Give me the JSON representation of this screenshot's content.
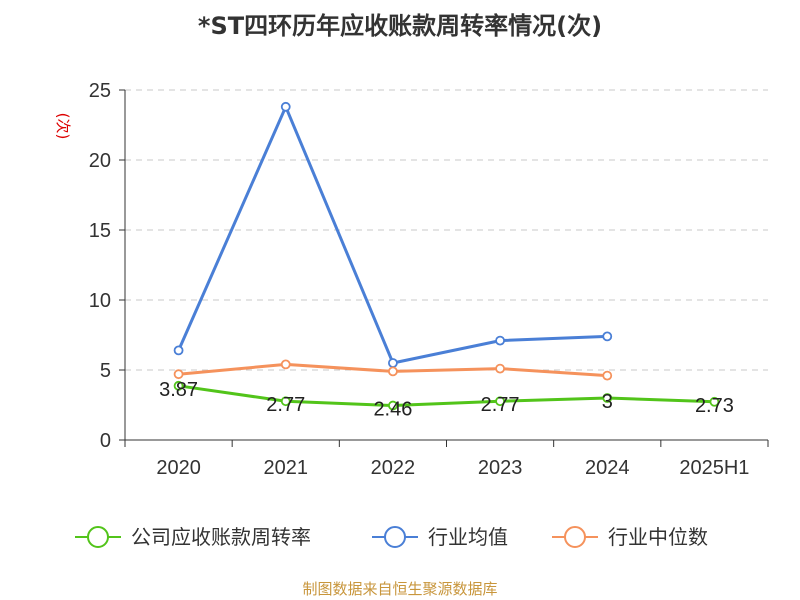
{
  "title": "*ST四环历年应收账款周转率情况(次)",
  "source": "制图数据来自恒生聚源数据库",
  "source_color": "#c8963c",
  "chart_data": {
    "type": "line",
    "title": "*ST四环历年应收账款周转率情况(次)",
    "categories": [
      "2020",
      "2021",
      "2022",
      "2023",
      "2024",
      "2025H1"
    ],
    "ylabel": "(次)",
    "ylim": [
      0,
      25
    ],
    "yticks": [
      0,
      5,
      10,
      15,
      20,
      25
    ],
    "grid": true,
    "legend_position": "bottom",
    "series": [
      {
        "name": "公司应收账款周转率",
        "color": "#52c41a",
        "values": [
          3.87,
          2.77,
          2.46,
          2.77,
          3,
          2.73
        ],
        "labels": [
          "3.87",
          "2.77",
          "2.46",
          "2.77",
          "3",
          "2.73"
        ]
      },
      {
        "name": "行业均值",
        "color": "#4a7fd6",
        "values": [
          6.4,
          23.8,
          5.5,
          7.1,
          7.4,
          null
        ]
      },
      {
        "name": "行业中位数",
        "color": "#f5925c",
        "values": [
          4.7,
          5.4,
          4.9,
          5.1,
          4.6,
          null
        ]
      }
    ]
  }
}
